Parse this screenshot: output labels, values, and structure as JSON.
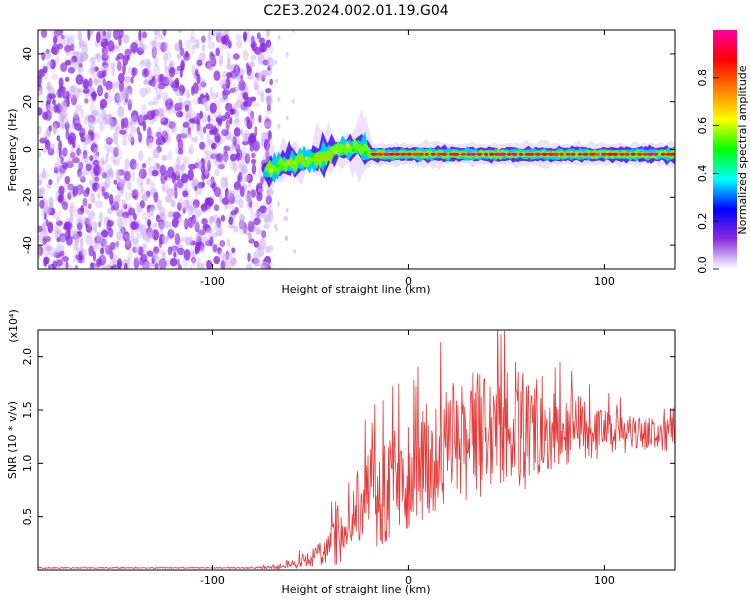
{
  "title": "C2E3.2024.002.01.19.G04",
  "colors": {
    "snr_line": "#e83a3a",
    "spectrum_purple": "#8a2be2",
    "axis": "#000000"
  },
  "chart_data": [
    {
      "type": "heatmap",
      "xlabel": "Height of straight line (km)",
      "ylabel": "Frequency (Hz)",
      "xlim": [
        -189,
        136
      ],
      "ylim": [
        -50,
        50
      ],
      "xticks": [
        -100,
        0,
        100
      ],
      "xtick_labels": [
        "-100",
        "0",
        "100"
      ],
      "yticks": [
        -40,
        -20,
        0,
        20,
        40
      ],
      "ytick_labels": [
        "-40",
        "-20",
        "0",
        "20",
        "40"
      ],
      "grid": false,
      "noise_region_x": [
        -189,
        -70
      ],
      "signal_track": {
        "x": [
          -72,
          -65,
          -55,
          -45,
          -35,
          -25,
          -20,
          0,
          50,
          100,
          136
        ],
        "frequency": [
          -9,
          -7,
          -5,
          -3,
          0,
          1,
          -2,
          -2,
          -2,
          -2,
          -2
        ],
        "peak_amplitude": 1.0
      },
      "colorbar": {
        "label": "Normalized spectral amplitude",
        "range": [
          0.0,
          1.0
        ],
        "ticks": [
          0.0,
          0.2,
          0.4,
          0.6,
          0.8
        ],
        "tick_labels": [
          "0.0",
          "0.2",
          "0.4",
          "0.6",
          "0.8"
        ],
        "colormap": [
          "#ffffff",
          "#8a2be2",
          "#0000ff",
          "#00ffff",
          "#00ff00",
          "#ffff00",
          "#ff8000",
          "#ff0000",
          "#ff00a0"
        ]
      }
    },
    {
      "type": "line",
      "xlabel": "Height of straight line (km)",
      "ylabel": "SNR (10 * v/v)",
      "scale_label": "(x10⁴)",
      "xlim": [
        -189,
        136
      ],
      "ylim": [
        0,
        2.25
      ],
      "xticks": [
        -100,
        0,
        100
      ],
      "xtick_labels": [
        "-100",
        "0",
        "100"
      ],
      "yticks": [
        0.5,
        1.0,
        1.5,
        2.0
      ],
      "ytick_labels": [
        "0.5",
        "1.0",
        "1.5",
        "2.0"
      ],
      "grid": false,
      "series": [
        {
          "color": "#e83a3a",
          "x": [
            -189,
            -150,
            -100,
            -80,
            -65,
            -55,
            -45,
            -40,
            -35,
            -30,
            -25,
            -20,
            -15,
            -10,
            -5,
            0,
            5,
            10,
            15,
            20,
            25,
            30,
            35,
            40,
            45,
            50,
            55,
            60,
            65,
            70,
            75,
            80,
            85,
            90,
            95,
            100,
            105,
            110,
            115,
            120,
            125,
            130,
            136
          ],
          "values": [
            0.02,
            0.02,
            0.02,
            0.02,
            0.03,
            0.08,
            0.15,
            0.25,
            0.35,
            0.5,
            0.55,
            0.7,
            0.65,
            0.8,
            0.85,
            0.9,
            0.95,
            1.05,
            1.1,
            1.15,
            1.2,
            1.25,
            1.3,
            1.2,
            1.35,
            1.3,
            1.4,
            1.3,
            1.35,
            1.4,
            1.35,
            1.3,
            1.35,
            1.3,
            1.25,
            1.3,
            1.3,
            1.25,
            1.3,
            1.25,
            1.3,
            1.25,
            1.3
          ],
          "spread": [
            0.005,
            0.005,
            0.005,
            0.005,
            0.02,
            0.06,
            0.12,
            0.2,
            0.3,
            0.35,
            0.45,
            0.5,
            0.5,
            0.5,
            0.5,
            0.55,
            0.55,
            0.55,
            0.55,
            0.55,
            0.6,
            0.6,
            0.65,
            0.6,
            0.6,
            0.6,
            0.65,
            0.55,
            0.5,
            0.5,
            0.4,
            0.35,
            0.3,
            0.3,
            0.25,
            0.22,
            0.2,
            0.18,
            0.18,
            0.15,
            0.15,
            0.15,
            0.15
          ]
        }
      ]
    }
  ]
}
